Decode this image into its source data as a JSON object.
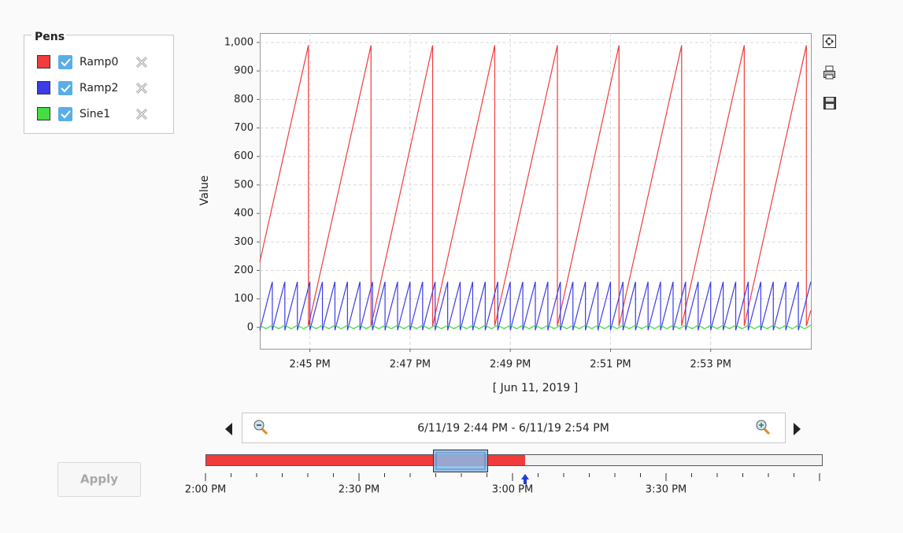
{
  "pens_title": "Pens",
  "chart_data": {
    "type": "line",
    "ylabel": "Value",
    "xlabel": "[ Jun 11, 2019 ]",
    "xlim": [
      884,
      895
    ],
    "xticks": [
      {
        "value": 885,
        "label": "2:45 PM"
      },
      {
        "value": 887,
        "label": "2:47 PM"
      },
      {
        "value": 889,
        "label": "2:49 PM"
      },
      {
        "value": 891,
        "label": "2:51 PM"
      },
      {
        "value": 893,
        "label": "2:53 PM"
      }
    ],
    "ylim": [
      -75,
      1033
    ],
    "yticks": [
      0,
      100,
      200,
      300,
      400,
      500,
      600,
      700,
      800,
      900,
      {
        "value": 1000,
        "label": "1,000"
      }
    ],
    "grid": true,
    "series": [
      {
        "name": "Ramp0",
        "color": "#f03c3c",
        "x": [
          884,
          884.97,
          884.97,
          886.22,
          886.22,
          887.45,
          887.45,
          888.69,
          888.69,
          889.94,
          889.94,
          891.17,
          891.17,
          892.42,
          892.42,
          893.67,
          893.67,
          894.91,
          894.91,
          895
        ],
        "values": [
          230,
          990,
          5,
          990,
          5,
          990,
          5,
          990,
          5,
          990,
          5,
          990,
          5,
          990,
          5,
          990,
          5,
          990,
          5,
          60
        ]
      },
      {
        "name": "Ramp2",
        "color": "#3c3ce6",
        "x": [
          884,
          884.25,
          884.25,
          884.5,
          884.5,
          884.75,
          884.75,
          885,
          885,
          885.25,
          885.25,
          885.5,
          885.5,
          885.75,
          885.75,
          886,
          886,
          886.25,
          886.25,
          886.5,
          886.5,
          886.75,
          886.75,
          887,
          887,
          887.25,
          887.25,
          887.5,
          887.5,
          887.75,
          887.75,
          888,
          888,
          888.25,
          888.25,
          888.5,
          888.5,
          888.75,
          888.75,
          889,
          889,
          889.25,
          889.25,
          889.5,
          889.5,
          889.75,
          889.75,
          890,
          890,
          890.25,
          890.25,
          890.5,
          890.5,
          890.75,
          890.75,
          891,
          891,
          891.25,
          891.25,
          891.5,
          891.5,
          891.75,
          891.75,
          892,
          892,
          892.25,
          892.25,
          892.5,
          892.5,
          892.75,
          892.75,
          893,
          893,
          893.25,
          893.25,
          893.5,
          893.5,
          893.75,
          893.75,
          894,
          894,
          894.25,
          894.25,
          894.5,
          894.5,
          894.75,
          894.75,
          895
        ],
        "values": [
          -10,
          160,
          -10,
          160,
          -10,
          160,
          -10,
          160,
          -10,
          160,
          -10,
          160,
          -10,
          160,
          -10,
          160,
          -10,
          160,
          -10,
          160,
          -10,
          160,
          -10,
          160,
          -10,
          160,
          -10,
          160,
          -10,
          160,
          -10,
          160,
          -10,
          160,
          -10,
          160,
          -10,
          160,
          -10,
          160,
          -10,
          160,
          -10,
          160,
          -10,
          160,
          -10,
          160,
          -10,
          160,
          -10,
          160,
          -10,
          160,
          -10,
          160,
          -10,
          160,
          -10,
          160,
          -10,
          160,
          -10,
          160,
          -10,
          160,
          -10,
          160,
          -10,
          160,
          -10,
          160,
          -10,
          160,
          -10,
          160,
          -10,
          160,
          -10,
          160,
          -10,
          160,
          -10,
          160,
          -10,
          160,
          -10,
          160
        ]
      },
      {
        "name": "Sine1",
        "color": "#44dd44",
        "x": [
          884,
          884.125,
          884.25,
          884.375,
          884.5,
          884.625,
          884.75,
          884.875,
          885,
          885.125,
          885.25,
          885.375,
          885.5,
          885.625,
          885.75,
          885.875,
          886,
          886.125,
          886.25,
          886.375,
          886.5,
          886.625,
          886.75,
          886.875,
          887,
          887.125,
          887.25,
          887.375,
          887.5,
          887.625,
          887.75,
          887.875,
          888,
          888.125,
          888.25,
          888.375,
          888.5,
          888.625,
          888.75,
          888.875,
          889,
          889.125,
          889.25,
          889.375,
          889.5,
          889.625,
          889.75,
          889.875,
          890,
          890.125,
          890.25,
          890.375,
          890.5,
          890.625,
          890.75,
          890.875,
          891,
          891.125,
          891.25,
          891.375,
          891.5,
          891.625,
          891.75,
          891.875,
          892,
          892.125,
          892.25,
          892.375,
          892.5,
          892.625,
          892.75,
          892.875,
          893,
          893.125,
          893.25,
          893.375,
          893.5,
          893.625,
          893.75,
          893.875,
          894,
          894.125,
          894.25,
          894.375,
          894.5,
          894.625,
          894.75,
          894.875,
          895
        ],
        "values": [
          8,
          -5,
          8,
          -5,
          8,
          -5,
          8,
          -5,
          8,
          -5,
          8,
          -5,
          8,
          -5,
          8,
          -5,
          8,
          -5,
          8,
          -5,
          8,
          -5,
          8,
          -5,
          8,
          -5,
          8,
          -5,
          8,
          -5,
          8,
          -5,
          8,
          -5,
          8,
          -5,
          8,
          -5,
          8,
          -5,
          8,
          -5,
          8,
          -5,
          8,
          -5,
          8,
          -5,
          8,
          -5,
          8,
          -5,
          8,
          -5,
          8,
          -5,
          8,
          -5,
          8,
          -5,
          8,
          -5,
          8,
          -5,
          8,
          -5,
          8,
          -5,
          8,
          -5,
          8,
          -5,
          8,
          -5,
          8,
          -5,
          8,
          -5,
          8,
          -5,
          8,
          -5,
          8,
          -5,
          8,
          -5,
          8,
          -5,
          8
        ]
      }
    ]
  },
  "range_label": "6/11/19 2:44 PM - 6/11/19 2:54 PM",
  "timeline_ticks": [
    "2:00 PM",
    "2:30 PM",
    "3:00 PM",
    "3:30 PM"
  ],
  "apply_button": "Apply"
}
